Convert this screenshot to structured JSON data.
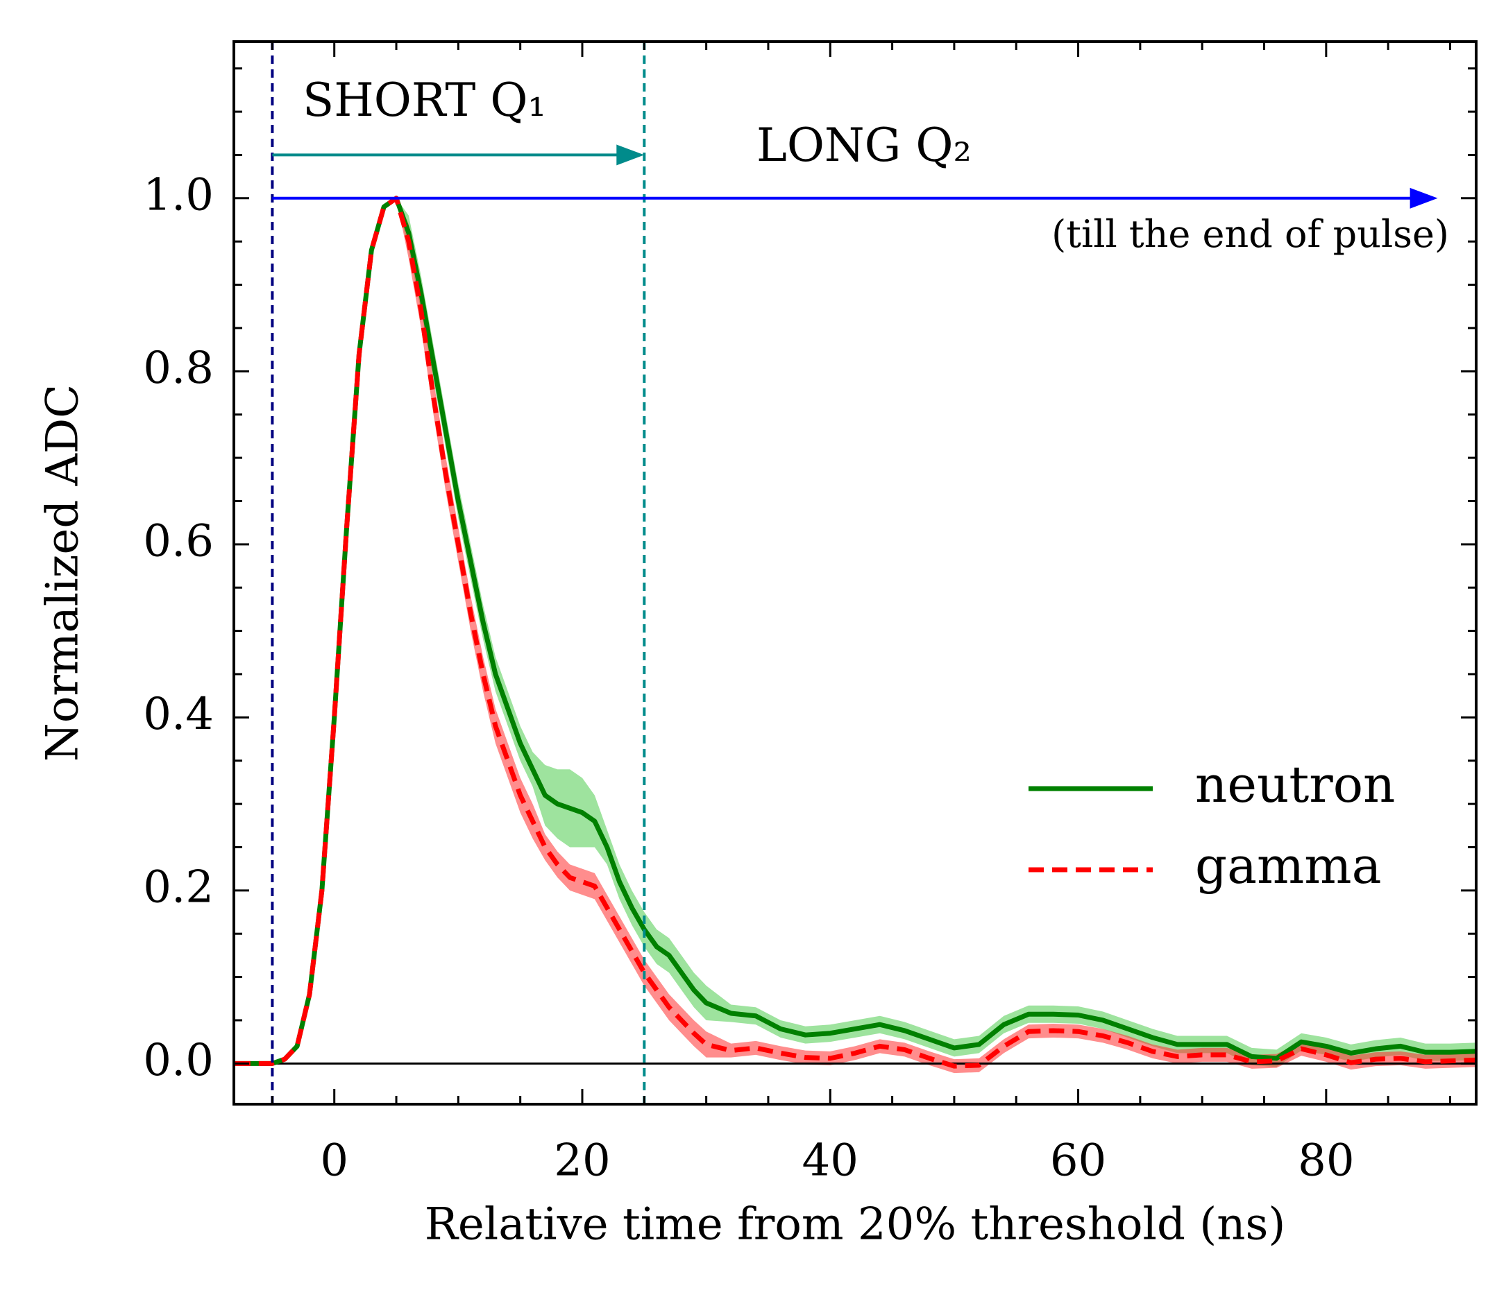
{
  "chart_data": {
    "type": "line",
    "xlabel": "Relative time from 20% threshold (ns)",
    "ylabel": "Normalized ADC",
    "x": [
      -8,
      -7,
      -6,
      -5,
      -4,
      -3,
      -2,
      -1,
      0,
      1,
      2,
      3,
      4,
      5,
      6,
      7,
      8,
      9,
      10,
      11,
      12,
      13,
      14,
      15,
      16,
      17,
      18,
      19,
      20,
      21,
      22,
      23,
      24,
      25,
      26,
      27,
      28,
      29,
      30,
      32,
      34,
      36,
      38,
      40,
      42,
      44,
      46,
      48,
      50,
      52,
      54,
      56,
      58,
      60,
      62,
      64,
      66,
      68,
      70,
      72,
      74,
      76,
      78,
      80,
      82,
      84,
      86,
      88,
      90,
      92
    ],
    "series": [
      {
        "name": "neutron",
        "color": "#008000",
        "band_color": "#4fcc4f",
        "dash": false,
        "values": [
          0,
          0,
          0,
          0,
          0.005,
          0.02,
          0.08,
          0.2,
          0.4,
          0.62,
          0.82,
          0.94,
          0.99,
          1.0,
          0.96,
          0.89,
          0.81,
          0.73,
          0.65,
          0.58,
          0.51,
          0.45,
          0.41,
          0.37,
          0.34,
          0.31,
          0.3,
          0.295,
          0.29,
          0.28,
          0.25,
          0.21,
          0.18,
          0.155,
          0.135,
          0.125,
          0.105,
          0.085,
          0.07,
          0.058,
          0.055,
          0.04,
          0.033,
          0.035,
          0.04,
          0.045,
          0.038,
          0.028,
          0.018,
          0.022,
          0.045,
          0.057,
          0.057,
          0.056,
          0.05,
          0.04,
          0.03,
          0.022,
          0.022,
          0.022,
          0.008,
          0.006,
          0.025,
          0.02,
          0.012,
          0.017,
          0.02,
          0.013,
          0.013,
          0.014
        ],
        "errors": [
          0,
          0,
          0,
          0,
          0,
          0,
          0,
          0,
          0,
          0,
          0,
          0,
          0,
          0,
          0.02,
          0.02,
          0.02,
          0.02,
          0.02,
          0.02,
          0.02,
          0.02,
          0.02,
          0.02,
          0.02,
          0.035,
          0.04,
          0.045,
          0.04,
          0.03,
          0.02,
          0.02,
          0.02,
          0.02,
          0.02,
          0.02,
          0.02,
          0.02,
          0.02,
          0.01,
          0.01,
          0.01,
          0.01,
          0.01,
          0.01,
          0.01,
          0.01,
          0.01,
          0.01,
          0.01,
          0.01,
          0.01,
          0.01,
          0.01,
          0.01,
          0.01,
          0.01,
          0.01,
          0.01,
          0.01,
          0.01,
          0.01,
          0.01,
          0.01,
          0.01,
          0.01,
          0.01,
          0.01,
          0.01,
          0.01
        ]
      },
      {
        "name": "gamma",
        "color": "#ff0000",
        "band_color": "#ff3030",
        "dash": true,
        "values": [
          0,
          0,
          0,
          0,
          0.005,
          0.02,
          0.08,
          0.2,
          0.4,
          0.62,
          0.82,
          0.94,
          0.99,
          1.0,
          0.95,
          0.87,
          0.77,
          0.68,
          0.6,
          0.52,
          0.45,
          0.39,
          0.35,
          0.31,
          0.28,
          0.25,
          0.23,
          0.215,
          0.21,
          0.205,
          0.18,
          0.155,
          0.13,
          0.105,
          0.085,
          0.065,
          0.05,
          0.035,
          0.022,
          0.015,
          0.018,
          0.012,
          0.007,
          0.006,
          0.012,
          0.02,
          0.016,
          0.006,
          -0.003,
          -0.002,
          0.02,
          0.037,
          0.038,
          0.037,
          0.032,
          0.024,
          0.014,
          0.008,
          0.01,
          0.01,
          0.002,
          0.003,
          0.017,
          0.01,
          0.001,
          0.005,
          0.006,
          0.002,
          0.003,
          0.004
        ],
        "errors": [
          0,
          0,
          0,
          0,
          0,
          0,
          0,
          0,
          0,
          0,
          0,
          0,
          0,
          0,
          0.02,
          0.02,
          0.02,
          0.02,
          0.02,
          0.02,
          0.02,
          0.02,
          0.02,
          0.02,
          0.02,
          0.015,
          0.015,
          0.015,
          0.015,
          0.015,
          0.015,
          0.015,
          0.015,
          0.015,
          0.015,
          0.015,
          0.015,
          0.015,
          0.015,
          0.008,
          0.008,
          0.008,
          0.008,
          0.008,
          0.008,
          0.008,
          0.008,
          0.008,
          0.008,
          0.008,
          0.008,
          0.008,
          0.008,
          0.008,
          0.008,
          0.008,
          0.008,
          0.008,
          0.008,
          0.008,
          0.008,
          0.008,
          0.008,
          0.008,
          0.008,
          0.008,
          0.008,
          0.008,
          0.008,
          0.008
        ]
      }
    ],
    "xlim": [
      -8.1,
      92.1
    ],
    "ylim": [
      -0.047,
      1.181
    ],
    "xticks": [
      0,
      20,
      40,
      60,
      80
    ],
    "xticks_minor": [
      -5,
      5,
      10,
      15,
      25,
      30,
      35,
      45,
      50,
      55,
      65,
      70,
      75,
      85,
      90
    ],
    "yticks": [
      {
        "value": 0,
        "label": "0.0"
      },
      0.2,
      0.4,
      0.6,
      0.8,
      {
        "value": 1,
        "label": "1.0"
      }
    ],
    "yticks_minor": [
      0.05,
      0.1,
      0.15,
      0.25,
      0.3,
      0.35,
      0.45,
      0.5,
      0.55,
      0.65,
      0.7,
      0.75,
      0.85,
      0.9,
      0.95,
      1.05,
      1.1,
      1.15
    ],
    "hline": 0,
    "vlines": [
      {
        "x": -5,
        "color": "#000080"
      },
      {
        "x": 25,
        "color": "#008b8b"
      }
    ],
    "arrows": [
      {
        "x": [
          -5,
          25
        ],
        "y": 1.05,
        "color": "#008b8b"
      },
      {
        "x": [
          -5,
          89
        ],
        "y": 1.0,
        "color": "#0000ff"
      }
    ],
    "annotations": [
      "SHORT Q₁",
      "LONG Q₂",
      "(till the end of pulse)"
    ],
    "legend": "right"
  }
}
